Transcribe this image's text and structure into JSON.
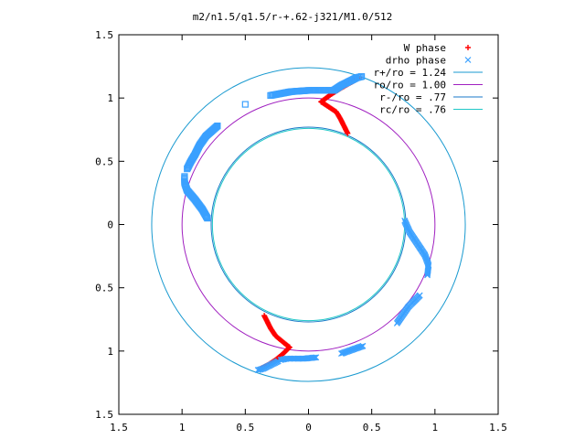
{
  "chart_data": {
    "type": "scatter",
    "title": "m2/n1.5/q1.5/r-+.62-j321/M1.0/512",
    "xlabel": "",
    "ylabel": "",
    "xlim": [
      -1.5,
      1.5
    ],
    "ylim": [
      -1.5,
      1.5
    ],
    "x_tick_values": [
      -1.5,
      -1,
      -0.5,
      0,
      0.5,
      1,
      1.5
    ],
    "x_tick_labels": [
      "1.5",
      "1",
      "0.5",
      "0",
      "0.5",
      "1",
      "1.5"
    ],
    "y_tick_values": [
      1.5,
      1,
      0.5,
      0,
      -0.5,
      -1,
      -1.5
    ],
    "y_tick_labels": [
      "1.5",
      "1",
      "0.5",
      "0",
      "0.5",
      "1",
      "1.5"
    ],
    "grid": false,
    "legend_position": "top-right",
    "legend": [
      {
        "label": "W phase",
        "marker": "+",
        "color": "#ff0000"
      },
      {
        "label": "drho phase",
        "marker": "x",
        "color": "#3aa0ff"
      },
      {
        "label": "r+/ro = 1.24",
        "marker": "line",
        "color": "#1a9ad0"
      },
      {
        "label": "ro/ro = 1.00",
        "marker": "line",
        "color": "#a020c0"
      },
      {
        "label": "r-/ro = .77",
        "marker": "line",
        "color": "#1a7ac8"
      },
      {
        "label": "rc/ro = .76",
        "marker": "line",
        "color": "#20c8c8"
      }
    ],
    "circles": [
      {
        "r": 1.24,
        "color": "#1a9ad0"
      },
      {
        "r": 1.0,
        "color": "#a020c0"
      },
      {
        "r": 0.77,
        "color": "#1a7ac8"
      },
      {
        "r": 0.76,
        "color": "#20c8c8"
      }
    ],
    "series": [
      {
        "name": "W phase",
        "marker": "+",
        "color": "#ff0000",
        "arms": [
          [
            [
              0.1,
              0.97
            ],
            [
              0.16,
              0.93
            ],
            [
              0.22,
              0.89
            ],
            [
              0.25,
              0.84
            ],
            [
              0.28,
              0.78
            ],
            [
              0.31,
              0.72
            ]
          ],
          [
            [
              0.1,
              0.97
            ],
            [
              0.18,
              1.03
            ],
            [
              0.26,
              1.08
            ],
            [
              0.33,
              1.12
            ],
            [
              0.4,
              1.16
            ]
          ],
          [
            [
              -0.15,
              -0.97
            ],
            [
              -0.2,
              -0.93
            ],
            [
              -0.26,
              -0.88
            ],
            [
              -0.3,
              -0.82
            ],
            [
              -0.33,
              -0.76
            ],
            [
              -0.35,
              -0.72
            ]
          ],
          [
            [
              -0.15,
              -0.97
            ],
            [
              -0.2,
              -1.02
            ],
            [
              -0.26,
              -1.07
            ],
            [
              -0.32,
              -1.11
            ],
            [
              -0.38,
              -1.14
            ]
          ]
        ]
      },
      {
        "name": "drho phase",
        "marker": "x",
        "color": "#3aa0ff",
        "arms": [
          [
            [
              0.76,
              0.03
            ],
            [
              0.8,
              -0.06
            ],
            [
              0.86,
              -0.15
            ],
            [
              0.92,
              -0.24
            ],
            [
              0.95,
              -0.32
            ],
            [
              0.94,
              -0.4
            ]
          ],
          [
            [
              0.88,
              -0.56
            ],
            [
              0.79,
              -0.65
            ],
            [
              0.7,
              -0.78
            ],
            [
              0.43,
              -0.96
            ],
            [
              0.26,
              -1.02
            ],
            [
              0.06,
              -1.05
            ],
            [
              -0.03,
              -1.06
            ],
            [
              -0.11,
              -1.06
            ],
            [
              -0.17,
              -1.06
            ],
            [
              -0.22,
              -1.07
            ]
          ],
          [
            [
              -0.24,
              -1.08
            ],
            [
              -0.3,
              -1.11
            ],
            [
              -0.36,
              -1.14
            ],
            [
              -0.4,
              -1.15
            ]
          ]
        ]
      },
      {
        "name": "",
        "marker": "square",
        "color": "#3aa0ff",
        "arms": [
          [
            [
              -0.8,
              0.05
            ],
            [
              -0.84,
              0.12
            ],
            [
              -0.9,
              0.2
            ],
            [
              -0.96,
              0.27
            ],
            [
              -0.98,
              0.33
            ],
            [
              -0.98,
              0.38
            ]
          ],
          [
            [
              -0.96,
              0.44
            ],
            [
              -0.93,
              0.5
            ],
            [
              -0.9,
              0.55
            ],
            [
              -0.86,
              0.63
            ],
            [
              -0.81,
              0.7
            ],
            [
              -0.72,
              0.78
            ],
            [
              -0.5,
              0.95
            ],
            [
              -0.3,
              1.02
            ],
            [
              -0.14,
              1.05
            ],
            [
              0.0,
              1.06
            ],
            [
              0.06,
              1.06
            ],
            [
              0.12,
              1.06
            ],
            [
              0.16,
              1.06
            ],
            [
              0.18,
              1.06
            ],
            [
              0.2,
              1.06
            ]
          ],
          [
            [
              0.2,
              1.06
            ],
            [
              0.26,
              1.1
            ],
            [
              0.32,
              1.13
            ],
            [
              0.38,
              1.16
            ],
            [
              0.42,
              1.17
            ]
          ]
        ]
      }
    ]
  }
}
